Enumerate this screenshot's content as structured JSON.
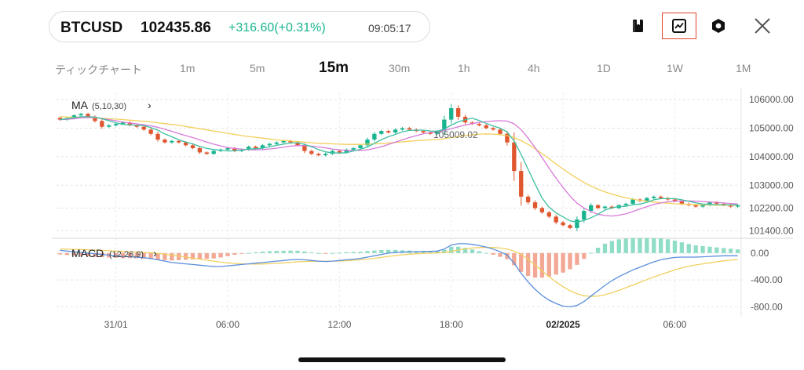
{
  "header": {
    "symbol": "BTCUSD",
    "price": "102435.86",
    "change": "+316.60(+0.31%)",
    "time": "09:05:17",
    "up_color": "#18b48f",
    "down_color": "#e0562f"
  },
  "toolbar_icons": [
    "bookmark-icon",
    "chart-icon",
    "settings-icon",
    "close-icon"
  ],
  "timeframes": [
    {
      "label": "ティックチャート",
      "selected": false
    },
    {
      "label": "1m",
      "selected": false
    },
    {
      "label": "5m",
      "selected": false
    },
    {
      "label": "15m",
      "selected": true
    },
    {
      "label": "30m",
      "selected": false
    },
    {
      "label": "1h",
      "selected": false
    },
    {
      "label": "4h",
      "selected": false
    },
    {
      "label": "1D",
      "selected": false
    },
    {
      "label": "1W",
      "selected": false
    },
    {
      "label": "1M",
      "selected": false
    }
  ],
  "chart_data": [
    {
      "type": "candlestick",
      "indicator_label": "MA",
      "indicator_params": "(5,10,30)",
      "y_tick_labels": [
        "106000.00",
        "105000.00",
        "104000.00",
        "103000.00",
        "102200.00",
        "101400.00"
      ],
      "y_ticks": [
        106000,
        105000,
        104000,
        103000,
        102200,
        101400
      ],
      "ylim": [
        101250,
        106250
      ],
      "x_tick_labels": [
        "31/01",
        "06:00",
        "12:00",
        "18:00",
        "02/2025",
        "06:00"
      ],
      "x_tick_index": [
        8,
        24,
        40,
        56,
        72,
        88
      ],
      "annotation": "105009.02",
      "grid": true,
      "close": [
        105300,
        105350,
        105450,
        105500,
        105400,
        105250,
        105050,
        105100,
        105150,
        105200,
        105100,
        105050,
        104950,
        104800,
        104600,
        104500,
        104550,
        104500,
        104400,
        104300,
        104150,
        104100,
        104200,
        104250,
        104300,
        104200,
        104250,
        104350,
        104300,
        104400,
        104450,
        104500,
        104550,
        104500,
        104400,
        104200,
        104100,
        104050,
        104100,
        104200,
        104150,
        104250,
        104300,
        104400,
        104600,
        104800,
        104900,
        104850,
        104950,
        105000,
        104950,
        104900,
        104850,
        104800,
        104900,
        105300,
        105700,
        105400,
        105200,
        105150,
        105100,
        105000,
        104950,
        104800,
        104500,
        103500,
        102600,
        102400,
        102200,
        102050,
        101900,
        101700,
        101600,
        101500,
        101800,
        102100,
        102300,
        102200,
        102250,
        102200,
        102300,
        102350,
        102500,
        102450,
        102550,
        102600,
        102550,
        102500,
        102450,
        102350,
        102300,
        102250,
        102300,
        102400,
        102350,
        102300,
        102250,
        102300
      ],
      "ma5": [
        105300,
        105330,
        105370,
        105400,
        105400,
        105390,
        105330,
        105260,
        105190,
        105130,
        105120,
        105100,
        105090,
        105020,
        104930,
        104800,
        104700,
        104590,
        104510,
        104450,
        104360,
        104290,
        104250,
        104230,
        104200,
        104210,
        104230,
        104260,
        104280,
        104300,
        104350,
        104400,
        104440,
        104480,
        104490,
        104430,
        104350,
        104250,
        104170,
        104130,
        104130,
        104140,
        104200,
        104260,
        104340,
        104470,
        104600,
        104700,
        104780,
        104870,
        104920,
        104930,
        104930,
        104900,
        104890,
        104970,
        105110,
        105220,
        105300,
        105350,
        105270,
        105170,
        105080,
        105000,
        104870,
        104550,
        104080,
        103560,
        103040,
        102550,
        102230,
        102030,
        101890,
        101750,
        101710,
        101770,
        101860,
        101980,
        102130,
        102210,
        102250,
        102260,
        102320,
        102340,
        102400,
        102490,
        102530,
        102530,
        102530,
        102490,
        102440,
        102380,
        102340,
        102330,
        102320,
        102320,
        102310,
        102310
      ],
      "ma10": [
        105300,
        105310,
        105330,
        105360,
        105370,
        105370,
        105340,
        105300,
        105260,
        105210,
        105180,
        105150,
        105120,
        105080,
        105030,
        104960,
        104890,
        104810,
        104740,
        104670,
        104590,
        104510,
        104440,
        104380,
        104320,
        104290,
        104260,
        104250,
        104240,
        104250,
        104270,
        104300,
        104330,
        104370,
        104390,
        104390,
        104370,
        104340,
        104310,
        104270,
        104240,
        104220,
        104220,
        104220,
        104240,
        104290,
        104350,
        104430,
        104510,
        104590,
        104670,
        104740,
        104800,
        104850,
        104880,
        104920,
        104980,
        105050,
        105110,
        105160,
        105200,
        105230,
        105250,
        105260,
        105250,
        105150,
        104950,
        104650,
        104320,
        103970,
        103600,
        103250,
        102920,
        102620,
        102370,
        102200,
        102080,
        101980,
        101940,
        101920,
        101950,
        102000,
        102080,
        102170,
        102250,
        102330,
        102380,
        102420,
        102440,
        102450,
        102450,
        102440,
        102430,
        102410,
        102400,
        102380,
        102360,
        102340
      ],
      "ma30": [
        105400,
        105390,
        105380,
        105370,
        105370,
        105360,
        105350,
        105330,
        105320,
        105300,
        105280,
        105260,
        105240,
        105220,
        105190,
        105160,
        105130,
        105100,
        105060,
        105020,
        104980,
        104940,
        104900,
        104860,
        104820,
        104780,
        104740,
        104710,
        104680,
        104650,
        104620,
        104590,
        104570,
        104550,
        104530,
        104510,
        104490,
        104470,
        104460,
        104450,
        104440,
        104430,
        104430,
        104430,
        104440,
        104450,
        104460,
        104480,
        104500,
        104520,
        104540,
        104560,
        104580,
        104590,
        104600,
        104630,
        104670,
        104710,
        104740,
        104770,
        104790,
        104800,
        104790,
        104770,
        104740,
        104670,
        104560,
        104430,
        104280,
        104110,
        103930,
        103750,
        103570,
        103400,
        103240,
        103100,
        102970,
        102860,
        102770,
        102690,
        102620,
        102560,
        102510,
        102470,
        102440,
        102410,
        102390,
        102370,
        102350,
        102340,
        102330,
        102320,
        102310,
        102310,
        102300,
        102300,
        102300,
        102300
      ]
    },
    {
      "type": "macd",
      "indicator_label": "MACD",
      "indicator_params": "(12,26,9)",
      "y_tick_labels": [
        "0.00",
        "-400.00",
        "-800.00"
      ],
      "y_ticks": [
        0,
        -400,
        -800
      ],
      "ylim": [
        -900,
        150
      ],
      "dif": [
        40,
        30,
        20,
        10,
        0,
        -10,
        -20,
        -30,
        -40,
        -50,
        -55,
        -60,
        -70,
        -80,
        -100,
        -120,
        -140,
        -150,
        -160,
        -170,
        -180,
        -190,
        -200,
        -200,
        -190,
        -180,
        -170,
        -160,
        -150,
        -140,
        -130,
        -120,
        -110,
        -100,
        -95,
        -100,
        -110,
        -120,
        -125,
        -120,
        -110,
        -100,
        -90,
        -80,
        -60,
        -40,
        -20,
        0,
        10,
        15,
        20,
        20,
        25,
        25,
        30,
        60,
        120,
        140,
        140,
        130,
        110,
        90,
        60,
        20,
        -30,
        -150,
        -300,
        -430,
        -540,
        -630,
        -700,
        -750,
        -790,
        -800,
        -780,
        -720,
        -640,
        -560,
        -480,
        -410,
        -350,
        -300,
        -250,
        -210,
        -170,
        -130,
        -100,
        -80,
        -65,
        -60,
        -60,
        -60,
        -55,
        -50,
        -45,
        -40,
        -40,
        -40
      ],
      "dea": [
        60,
        58,
        55,
        52,
        48,
        44,
        40,
        35,
        30,
        25,
        20,
        15,
        10,
        5,
        -5,
        -15,
        -30,
        -45,
        -60,
        -75,
        -90,
        -105,
        -120,
        -135,
        -145,
        -155,
        -160,
        -162,
        -163,
        -162,
        -158,
        -152,
        -145,
        -137,
        -130,
        -125,
        -122,
        -121,
        -121,
        -120,
        -118,
        -114,
        -108,
        -100,
        -90,
        -78,
        -65,
        -50,
        -37,
        -26,
        -17,
        -10,
        -5,
        -1,
        2,
        10,
        25,
        45,
        62,
        75,
        82,
        85,
        83,
        75,
        60,
        30,
        -20,
        -90,
        -175,
        -265,
        -350,
        -430,
        -500,
        -560,
        -605,
        -635,
        -645,
        -640,
        -620,
        -590,
        -555,
        -515,
        -475,
        -435,
        -395,
        -355,
        -320,
        -285,
        -250,
        -220,
        -195,
        -175,
        -160,
        -145,
        -130,
        -115,
        -105,
        -95
      ],
      "hist": [
        -20,
        -28,
        -35,
        -42,
        -48,
        -54,
        -60,
        -65,
        -70,
        -75,
        -75,
        -75,
        -80,
        -85,
        -95,
        -105,
        -110,
        -105,
        -100,
        -95,
        -90,
        -85,
        -80,
        -65,
        -45,
        -25,
        -10,
        2,
        13,
        22,
        28,
        32,
        35,
        37,
        35,
        25,
        12,
        1,
        -4,
        1,
        8,
        14,
        18,
        20,
        30,
        38,
        45,
        50,
        47,
        41,
        37,
        30,
        30,
        26,
        28,
        50,
        95,
        95,
        78,
        55,
        28,
        5,
        -23,
        -55,
        -90,
        -180,
        -280,
        -340,
        -365,
        -365,
        -350,
        -320,
        -290,
        -240,
        -175,
        -85,
        5,
        80,
        140,
        180,
        205,
        215,
        225,
        225,
        225,
        225,
        220,
        205,
        185,
        160,
        135,
        115,
        105,
        95,
        85,
        75,
        65,
        55
      ]
    }
  ]
}
